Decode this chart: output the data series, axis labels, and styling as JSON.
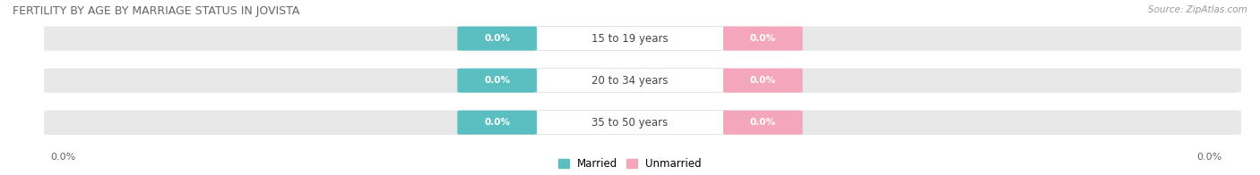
{
  "title": "FERTILITY BY AGE BY MARRIAGE STATUS IN JOVISTA",
  "source": "Source: ZipAtlas.com",
  "categories": [
    "15 to 19 years",
    "20 to 34 years",
    "35 to 50 years"
  ],
  "married_values": [
    0.0,
    0.0,
    0.0
  ],
  "unmarried_values": [
    0.0,
    0.0,
    0.0
  ],
  "married_color": "#5bbfc2",
  "unmarried_color": "#f4a7bc",
  "bar_bg_color": "#e8e8e8",
  "bar_bg_color2": "#f0f0f0",
  "background_color": "#ffffff",
  "legend_married": "Married",
  "legend_unmarried": "Unmarried",
  "title_fontsize": 9,
  "source_fontsize": 7.5,
  "value_label": "0.0%"
}
